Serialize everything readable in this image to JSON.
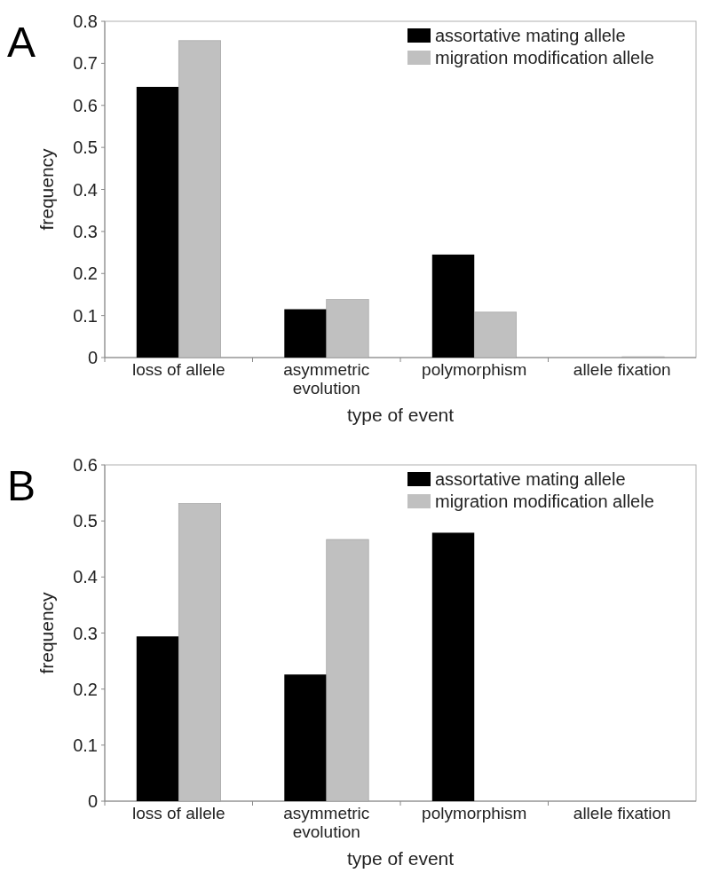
{
  "chart_data": [
    {
      "type": "bar",
      "title": "A",
      "xlabel": "type of event",
      "ylabel": "frequency",
      "categories": [
        "loss of allele",
        "asymmetric evolution",
        "polymorphism",
        "allele fixation"
      ],
      "series": [
        {
          "name": "assortative mating allele",
          "color": "#000000",
          "values": [
            0.644,
            0.115,
            0.245,
            0
          ]
        },
        {
          "name": "migration modification allele",
          "color": "#c0c0c0",
          "values": [
            0.754,
            0.138,
            0.108,
            0.002
          ]
        }
      ],
      "ylim": [
        0,
        0.8
      ],
      "yticks": [
        0,
        0.1,
        0.2,
        0.3,
        0.4,
        0.5,
        0.6,
        0.7,
        0.8
      ],
      "legend": "top right"
    },
    {
      "type": "bar",
      "title": "B",
      "xlabel": "type of event",
      "ylabel": "frequency",
      "categories": [
        "loss of allele",
        "asymmetric evolution",
        "polymorphism",
        "allele fixation"
      ],
      "series": [
        {
          "name": "assortative mating allele",
          "color": "#000000",
          "values": [
            0.294,
            0.226,
            0.479,
            0
          ]
        },
        {
          "name": "migration modification allele",
          "color": "#c0c0c0",
          "values": [
            0.531,
            0.467,
            0,
            0
          ]
        }
      ],
      "ylim": [
        0,
        0.6
      ],
      "yticks": [
        0,
        0.1,
        0.2,
        0.3,
        0.4,
        0.5,
        0.6
      ],
      "legend": "top right"
    }
  ]
}
